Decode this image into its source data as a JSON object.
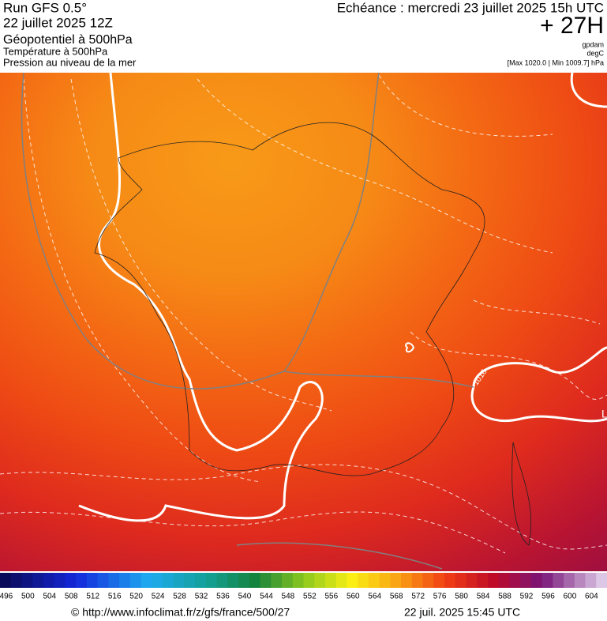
{
  "header": {
    "run": "Run GFS 0.5°",
    "date": "22 juillet 2025 12Z",
    "field1": "Géopotentiel à 500hPa",
    "field2": "Température à 500hPa",
    "field3": "Pression au niveau de la mer",
    "echeance": "Echéance : mercredi 23 juillet 2025 15h UTC",
    "offset": "+ 27H",
    "unit1": "gpdam",
    "unit2": "degC",
    "pressure_range": "[Max 1020.0 | Min 1009.7] hPa"
  },
  "map": {
    "labels": [
      "1016",
      "L"
    ]
  },
  "scale": {
    "labels": [
      "496",
      "500",
      "504",
      "508",
      "512",
      "516",
      "520",
      "524",
      "528",
      "532",
      "536",
      "540",
      "544",
      "548",
      "552",
      "556",
      "560",
      "564",
      "568",
      "572",
      "576",
      "580",
      "584",
      "588",
      "592",
      "596",
      "600",
      "604"
    ]
  },
  "footer": {
    "source": "© http://www.infoclimat.fr/z/gfs/france/500/27",
    "generated": "22 juil. 2025 15:45 UTC"
  }
}
